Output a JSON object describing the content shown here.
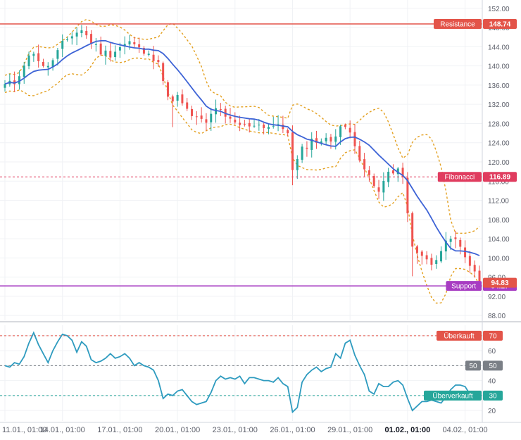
{
  "chart_data": [
    {
      "type": "candlestick",
      "panel": "price",
      "x_ticks": [
        {
          "label": "11.01., 01:00",
          "bar": 0,
          "bold": false
        },
        {
          "label": "14.01., 01:00",
          "bar": 12,
          "bold": false
        },
        {
          "label": "17.01., 01:00",
          "bar": 24,
          "bold": false
        },
        {
          "label": "20.01., 01:00",
          "bar": 36,
          "bold": false
        },
        {
          "label": "23.01., 01:00",
          "bar": 48,
          "bold": false
        },
        {
          "label": "26.01., 01:00",
          "bar": 60,
          "bold": false
        },
        {
          "label": "29.01., 01:00",
          "bar": 72,
          "bold": false
        },
        {
          "label": "01.02., 01:00",
          "bar": 84,
          "bold": true
        },
        {
          "label": "04.02., 01:00",
          "bar": 96,
          "bold": false
        }
      ],
      "y_ticks": [
        152,
        148,
        144,
        140,
        136,
        132,
        128,
        124,
        120,
        116,
        112,
        108,
        104,
        100,
        96,
        92,
        88
      ],
      "ylim": [
        87,
        153
      ],
      "grid": true,
      "keyframes": [
        [
          0,
          136.0
        ],
        [
          2,
          136.5
        ],
        [
          4,
          140.5
        ],
        [
          6,
          143.0
        ],
        [
          8,
          139.5
        ],
        [
          10,
          141.0
        ],
        [
          12,
          144.5
        ],
        [
          14,
          146.5
        ],
        [
          16,
          147.5
        ],
        [
          18,
          145.0
        ],
        [
          20,
          143.0
        ],
        [
          22,
          142.5
        ],
        [
          24,
          144.0
        ],
        [
          26,
          145.0
        ],
        [
          28,
          143.5
        ],
        [
          30,
          142.0
        ],
        [
          32,
          141.5
        ],
        [
          33,
          137.0
        ],
        [
          34,
          133.0
        ],
        [
          36,
          133.5
        ],
        [
          38,
          130.5
        ],
        [
          40,
          129.0
        ],
        [
          42,
          128.0
        ],
        [
          44,
          131.5
        ],
        [
          46,
          129.0
        ],
        [
          48,
          128.0
        ],
        [
          50,
          127.5
        ],
        [
          52,
          128.0
        ],
        [
          54,
          127.5
        ],
        [
          56,
          127.5
        ],
        [
          58,
          127.0
        ],
        [
          59,
          126.5
        ],
        [
          60,
          118.0
        ],
        [
          62,
          122.5
        ],
        [
          64,
          124.5
        ],
        [
          66,
          124.5
        ],
        [
          68,
          124.5
        ],
        [
          70,
          127.5
        ],
        [
          72,
          126.0
        ],
        [
          73,
          124.0
        ],
        [
          74,
          121.0
        ],
        [
          76,
          116.5
        ],
        [
          78,
          113.5
        ],
        [
          80,
          118.0
        ],
        [
          82,
          118.5
        ],
        [
          83,
          117.0
        ],
        [
          84,
          108.5
        ],
        [
          85,
          103.0
        ],
        [
          86,
          100.5
        ],
        [
          88,
          99.5
        ],
        [
          90,
          99.0
        ],
        [
          92,
          103.5
        ],
        [
          94,
          104.0
        ],
        [
          96,
          100.0
        ],
        [
          98,
          96.5
        ],
        [
          99,
          95.0
        ]
      ],
      "overlays": [
        {
          "name": "moving-average",
          "color": "#3d63d6"
        },
        {
          "name": "bollinger-bands",
          "color": "#e3a020"
        }
      ],
      "levels": [
        {
          "name": "Resistance",
          "value": 148.74,
          "label": "148.74",
          "color": "#e35449"
        },
        {
          "name": "Fibonacci",
          "value": 116.89,
          "label": "116.89",
          "color": "#e03c5f"
        },
        {
          "name": "Support",
          "value": 94.17,
          "label": "94.17",
          "color": "#a73cc2"
        }
      ],
      "last_price": {
        "value": 94.83,
        "label": "94.83",
        "color": "#e35449"
      }
    },
    {
      "type": "line",
      "panel": "rsi",
      "color": "#2e9bbf",
      "y_ticks": [
        70,
        60,
        50,
        40,
        30,
        20
      ],
      "ylim": [
        13,
        77
      ],
      "levels": [
        {
          "name": "Überkauft",
          "value": 70,
          "label": "70",
          "color": "#e35449"
        },
        {
          "name": "",
          "value": 50,
          "label": "50",
          "left": "50",
          "color": "#7a7f86"
        },
        {
          "name": "Überverkauft",
          "value": 30,
          "label": "30",
          "color": "#26a69a"
        }
      ],
      "keyframes": [
        [
          0,
          50
        ],
        [
          1,
          49
        ],
        [
          2,
          52
        ],
        [
          3,
          51
        ],
        [
          4,
          56
        ],
        [
          5,
          65
        ],
        [
          6,
          72
        ],
        [
          7,
          64
        ],
        [
          8,
          58
        ],
        [
          9,
          52
        ],
        [
          10,
          60
        ],
        [
          11,
          66
        ],
        [
          12,
          71
        ],
        [
          13,
          70
        ],
        [
          14,
          67
        ],
        [
          15,
          59
        ],
        [
          16,
          66
        ],
        [
          17,
          63
        ],
        [
          18,
          54
        ],
        [
          19,
          52
        ],
        [
          20,
          53
        ],
        [
          21,
          55
        ],
        [
          22,
          58
        ],
        [
          23,
          55
        ],
        [
          24,
          56
        ],
        [
          25,
          58
        ],
        [
          26,
          55
        ],
        [
          27,
          50
        ],
        [
          28,
          52
        ],
        [
          29,
          50
        ],
        [
          30,
          49
        ],
        [
          31,
          47
        ],
        [
          32,
          40
        ],
        [
          33,
          28
        ],
        [
          34,
          31
        ],
        [
          35,
          30
        ],
        [
          36,
          33
        ],
        [
          37,
          34
        ],
        [
          38,
          30
        ],
        [
          39,
          26
        ],
        [
          40,
          24
        ],
        [
          41,
          25
        ],
        [
          42,
          26
        ],
        [
          43,
          32
        ],
        [
          44,
          40
        ],
        [
          45,
          43
        ],
        [
          46,
          41
        ],
        [
          47,
          42
        ],
        [
          48,
          41
        ],
        [
          49,
          43
        ],
        [
          50,
          38
        ],
        [
          51,
          42
        ],
        [
          52,
          42
        ],
        [
          53,
          41
        ],
        [
          54,
          40
        ],
        [
          55,
          40
        ],
        [
          56,
          39
        ],
        [
          57,
          42
        ],
        [
          58,
          38
        ],
        [
          59,
          36
        ],
        [
          60,
          19
        ],
        [
          61,
          22
        ],
        [
          62,
          39
        ],
        [
          63,
          44
        ],
        [
          64,
          47
        ],
        [
          65,
          49
        ],
        [
          66,
          46
        ],
        [
          67,
          48
        ],
        [
          68,
          49
        ],
        [
          69,
          58
        ],
        [
          70,
          55
        ],
        [
          71,
          65
        ],
        [
          72,
          67
        ],
        [
          73,
          57
        ],
        [
          74,
          50
        ],
        [
          75,
          44
        ],
        [
          76,
          33
        ],
        [
          77,
          31
        ],
        [
          78,
          38
        ],
        [
          79,
          36
        ],
        [
          80,
          36
        ],
        [
          81,
          39
        ],
        [
          82,
          40
        ],
        [
          83,
          37
        ],
        [
          84,
          28
        ],
        [
          85,
          20
        ],
        [
          86,
          23
        ],
        [
          87,
          26
        ],
        [
          88,
          26
        ],
        [
          89,
          27
        ],
        [
          90,
          26
        ],
        [
          91,
          25
        ],
        [
          92,
          29
        ],
        [
          93,
          34
        ],
        [
          94,
          37
        ],
        [
          95,
          37
        ],
        [
          96,
          36
        ],
        [
          97,
          31
        ],
        [
          98,
          29
        ],
        [
          99,
          30
        ]
      ]
    }
  ]
}
